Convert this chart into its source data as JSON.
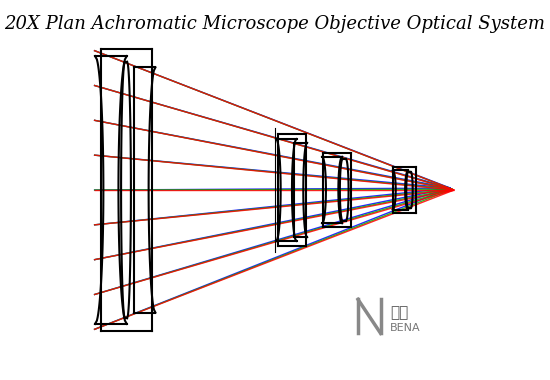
{
  "title": "20X Plan Achromatic Microscope Objective Optical System",
  "title_fontsize": 13,
  "title_style": "italic",
  "bg_color": "#ffffff",
  "colors": {
    "blue": "#0000ff",
    "green": "#00aa00",
    "red": "#ff0000",
    "lens": "#000000"
  },
  "focal_point": [
    0.97,
    0.5
  ],
  "n_rays_per_color": 8,
  "ray_lw": 1.0,
  "lens_lw": 1.5
}
